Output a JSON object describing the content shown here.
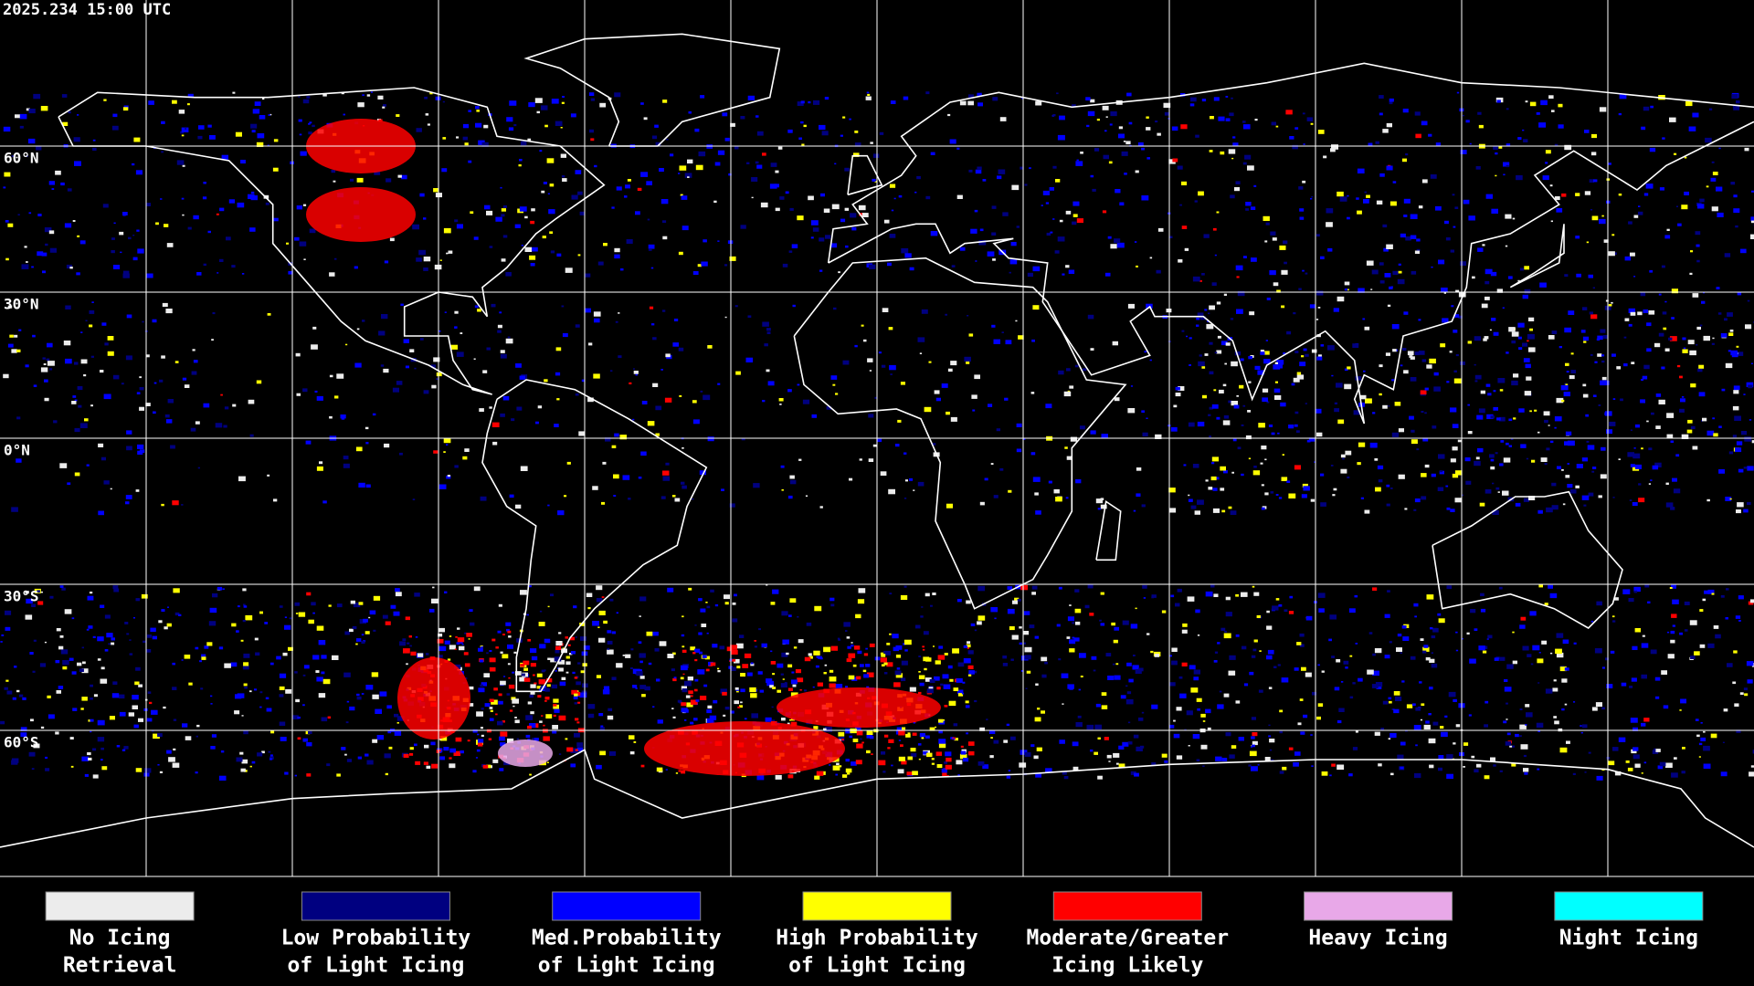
{
  "header": {
    "timestamp": "2025.234 15:00 UTC"
  },
  "latitude_labels": [
    "60°N",
    "30°N",
    "0°N",
    "30°S",
    "60°S"
  ],
  "legend": [
    {
      "label_lines": [
        "No Icing",
        "Retrieval"
      ],
      "color": "#ececec"
    },
    {
      "label_lines": [
        "Low Probability",
        "of Light Icing"
      ],
      "color": "#000080"
    },
    {
      "label_lines": [
        "Med.Probability",
        "of Light Icing"
      ],
      "color": "#0000ff"
    },
    {
      "label_lines": [
        "High Probability",
        "of Light Icing"
      ],
      "color": "#ffff00"
    },
    {
      "label_lines": [
        "Moderate/Greater",
        "Icing Likely"
      ],
      "color": "#ff0000"
    },
    {
      "label_lines": [
        "Heavy Icing"
      ],
      "color": "#e8a8e8"
    },
    {
      "label_lines": [
        "Night Icing"
      ],
      "color": "#00ffff"
    }
  ]
}
